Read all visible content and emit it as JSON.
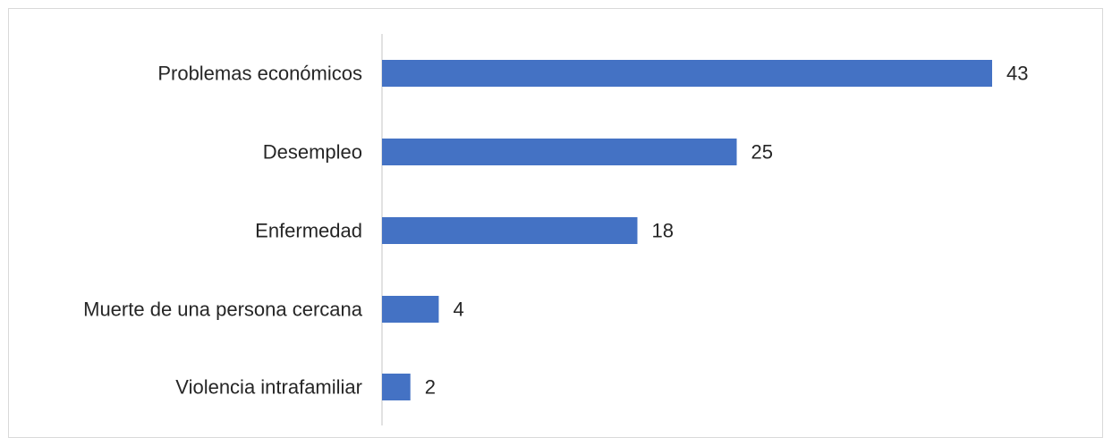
{
  "chart_data": {
    "type": "bar",
    "orientation": "horizontal",
    "categories": [
      "Problemas económicos",
      "Desempleo",
      "Enfermedad",
      "Muerte de una persona cercana",
      "Violencia intrafamiliar"
    ],
    "values": [
      43,
      25,
      18,
      4,
      2
    ],
    "data_labels": [
      "43",
      "25",
      "18",
      "4",
      "2"
    ],
    "title": "",
    "xlabel": "",
    "ylabel": "",
    "xlim": [
      0,
      45
    ],
    "grid": false,
    "legend": "none",
    "colors": {
      "bar": "#4472c4",
      "axis": "#d9d9d9",
      "text": "#262626",
      "frame": "#d9d9d9"
    }
  }
}
